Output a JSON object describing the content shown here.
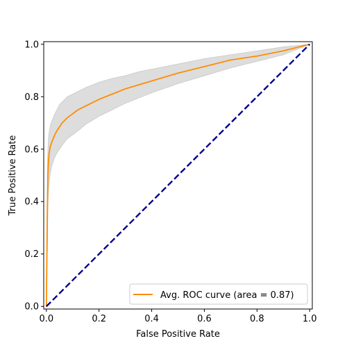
{
  "chart_data": {
    "type": "line",
    "title": "",
    "xlabel": "False Positive Rate",
    "ylabel": "True Positive Rate",
    "xlim": [
      -0.01,
      1.01
    ],
    "ylim": [
      -0.01,
      1.01
    ],
    "x_ticks": [
      "0.0",
      "0.2",
      "0.4",
      "0.6",
      "0.8",
      "1.0"
    ],
    "y_ticks": [
      "0.0",
      "0.2",
      "0.4",
      "0.6",
      "0.8",
      "1.0"
    ],
    "grid": false,
    "legend_position": "lower-right",
    "series": [
      {
        "name": "Avg. ROC curve (area = 0.87)",
        "color": "#ff8c00",
        "style": "solid",
        "x": [
          0.0,
          0.004,
          0.006,
          0.008,
          0.01,
          0.015,
          0.02,
          0.03,
          0.04,
          0.05,
          0.06,
          0.08,
          0.1,
          0.12,
          0.15,
          0.2,
          0.25,
          0.3,
          0.35,
          0.4,
          0.5,
          0.6,
          0.7,
          0.8,
          0.9,
          1.0
        ],
        "y": [
          0.0,
          0.38,
          0.5,
          0.55,
          0.58,
          0.61,
          0.625,
          0.65,
          0.67,
          0.685,
          0.7,
          0.72,
          0.735,
          0.75,
          0.765,
          0.79,
          0.81,
          0.83,
          0.845,
          0.86,
          0.89,
          0.915,
          0.94,
          0.955,
          0.975,
          1.0
        ]
      },
      {
        "name": "",
        "color": "#00008b",
        "style": "dashed",
        "x": [
          0.0,
          1.0
        ],
        "y": [
          0.0,
          1.0
        ]
      }
    ],
    "band": {
      "color": "#dddddd",
      "edge_color": "#c8c8c8",
      "x": [
        0.0,
        0.004,
        0.006,
        0.008,
        0.01,
        0.015,
        0.02,
        0.03,
        0.04,
        0.05,
        0.06,
        0.08,
        0.1,
        0.12,
        0.15,
        0.2,
        0.25,
        0.3,
        0.35,
        0.4,
        0.5,
        0.6,
        0.7,
        0.8,
        0.9,
        1.0
      ],
      "upper": [
        0.0,
        0.54,
        0.6,
        0.64,
        0.66,
        0.69,
        0.705,
        0.73,
        0.75,
        0.77,
        0.78,
        0.8,
        0.81,
        0.82,
        0.835,
        0.855,
        0.87,
        0.88,
        0.895,
        0.905,
        0.925,
        0.945,
        0.96,
        0.975,
        0.99,
        1.0
      ],
      "lower": [
        0.0,
        0.22,
        0.39,
        0.44,
        0.47,
        0.51,
        0.535,
        0.565,
        0.585,
        0.6,
        0.615,
        0.64,
        0.655,
        0.67,
        0.695,
        0.725,
        0.75,
        0.775,
        0.795,
        0.815,
        0.85,
        0.88,
        0.91,
        0.935,
        0.96,
        1.0
      ]
    }
  }
}
